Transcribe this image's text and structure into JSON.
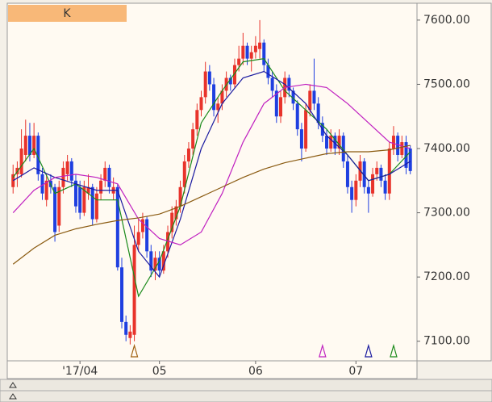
{
  "chart_data": {
    "type": "candlestick",
    "label": "K",
    "up_color": "#e8332b",
    "down_color": "#1f3fe0",
    "ylim": [
      7072,
      7625
    ],
    "yticks": [
      {
        "value": 7100,
        "label": "7100.00"
      },
      {
        "value": 7200,
        "label": "7200.00"
      },
      {
        "value": 7300,
        "label": "7300.00"
      },
      {
        "value": 7400,
        "label": "7400.00"
      },
      {
        "value": 7500,
        "label": "7500.00"
      },
      {
        "value": 7600,
        "label": "7600.00"
      }
    ],
    "xlim": [
      -1.2,
      96.6
    ],
    "xticks": [
      {
        "value": 16,
        "label": "'17/04"
      },
      {
        "value": 35,
        "label": "05"
      },
      {
        "value": 58,
        "label": "06"
      },
      {
        "value": 82,
        "label": "07"
      }
    ],
    "ohlc": [
      [
        7340,
        7375,
        7330,
        7360
      ],
      [
        7360,
        7380,
        7340,
        7370
      ],
      [
        7360,
        7430,
        7355,
        7400
      ],
      [
        7390,
        7445,
        7380,
        7420
      ],
      [
        7420,
        7440,
        7380,
        7390
      ],
      [
        7390,
        7440,
        7385,
        7420
      ],
      [
        7420,
        7425,
        7350,
        7360
      ],
      [
        7360,
        7370,
        7320,
        7330
      ],
      [
        7320,
        7360,
        7310,
        7350
      ],
      [
        7350,
        7360,
        7330,
        7340
      ],
      [
        7340,
        7345,
        7255,
        7270
      ],
      [
        7280,
        7350,
        7270,
        7340
      ],
      [
        7340,
        7380,
        7330,
        7370
      ],
      [
        7360,
        7390,
        7350,
        7380
      ],
      [
        7380,
        7385,
        7340,
        7350
      ],
      [
        7350,
        7360,
        7300,
        7310
      ],
      [
        7340,
        7350,
        7290,
        7300
      ],
      [
        7300,
        7350,
        7295,
        7340
      ],
      [
        7330,
        7360,
        7320,
        7340
      ],
      [
        7340,
        7345,
        7280,
        7290
      ],
      [
        7290,
        7340,
        7285,
        7330
      ],
      [
        7330,
        7360,
        7320,
        7350
      ],
      [
        7350,
        7380,
        7340,
        7370
      ],
      [
        7370,
        7375,
        7330,
        7340
      ],
      [
        7330,
        7355,
        7320,
        7340
      ],
      [
        7340,
        7345,
        7210,
        7215
      ],
      [
        7215,
        7230,
        7120,
        7130
      ],
      [
        7130,
        7140,
        7100,
        7110
      ],
      [
        7105,
        7125,
        7095,
        7115
      ],
      [
        7110,
        7280,
        7100,
        7250
      ],
      [
        7250,
        7290,
        7240,
        7270
      ],
      [
        7270,
        7300,
        7260,
        7290
      ],
      [
        7290,
        7295,
        7230,
        7240
      ],
      [
        7240,
        7250,
        7200,
        7210
      ],
      [
        7210,
        7240,
        7195,
        7230
      ],
      [
        7230,
        7240,
        7200,
        7210
      ],
      [
        7210,
        7250,
        7205,
        7240
      ],
      [
        7240,
        7280,
        7230,
        7270
      ],
      [
        7270,
        7310,
        7260,
        7300
      ],
      [
        7290,
        7320,
        7280,
        7310
      ],
      [
        7310,
        7350,
        7300,
        7340
      ],
      [
        7340,
        7390,
        7330,
        7380
      ],
      [
        7380,
        7410,
        7370,
        7400
      ],
      [
        7400,
        7440,
        7390,
        7430
      ],
      [
        7430,
        7470,
        7420,
        7460
      ],
      [
        7460,
        7490,
        7450,
        7480
      ],
      [
        7480,
        7535,
        7470,
        7520
      ],
      [
        7520,
        7530,
        7490,
        7500
      ],
      [
        7500,
        7510,
        7450,
        7460
      ],
      [
        7460,
        7480,
        7440,
        7470
      ],
      [
        7470,
        7500,
        7460,
        7490
      ],
      [
        7490,
        7520,
        7480,
        7510
      ],
      [
        7510,
        7515,
        7490,
        7500
      ],
      [
        7500,
        7540,
        7495,
        7530
      ],
      [
        7530,
        7560,
        7520,
        7540
      ],
      [
        7540,
        7580,
        7530,
        7560
      ],
      [
        7560,
        7565,
        7530,
        7540
      ],
      [
        7540,
        7560,
        7520,
        7550
      ],
      [
        7550,
        7575,
        7540,
        7560
      ],
      [
        7555,
        7600,
        7540,
        7565
      ],
      [
        7565,
        7570,
        7520,
        7530
      ],
      [
        7530,
        7540,
        7500,
        7510
      ],
      [
        7510,
        7520,
        7480,
        7490
      ],
      [
        7490,
        7500,
        7440,
        7450
      ],
      [
        7450,
        7490,
        7440,
        7480
      ],
      [
        7480,
        7520,
        7470,
        7510
      ],
      [
        7510,
        7515,
        7480,
        7490
      ],
      [
        7490,
        7495,
        7460,
        7470
      ],
      [
        7470,
        7475,
        7420,
        7430
      ],
      [
        7430,
        7440,
        7380,
        7400
      ],
      [
        7400,
        7470,
        7395,
        7460
      ],
      [
        7460,
        7500,
        7450,
        7490
      ],
      [
        7490,
        7540,
        7460,
        7470
      ],
      [
        7470,
        7480,
        7430,
        7440
      ],
      [
        7440,
        7450,
        7410,
        7420
      ],
      [
        7420,
        7430,
        7390,
        7400
      ],
      [
        7400,
        7430,
        7395,
        7420
      ],
      [
        7420,
        7425,
        7390,
        7400
      ],
      [
        7400,
        7430,
        7390,
        7420
      ],
      [
        7420,
        7425,
        7370,
        7380
      ],
      [
        7380,
        7390,
        7330,
        7340
      ],
      [
        7340,
        7350,
        7300,
        7320
      ],
      [
        7320,
        7360,
        7310,
        7350
      ],
      [
        7350,
        7390,
        7340,
        7380
      ],
      [
        7380,
        7385,
        7330,
        7340
      ],
      [
        7340,
        7350,
        7300,
        7330
      ],
      [
        7330,
        7370,
        7325,
        7360
      ],
      [
        7360,
        7380,
        7350,
        7370
      ],
      [
        7370,
        7375,
        7340,
        7350
      ],
      [
        7350,
        7360,
        7320,
        7330
      ],
      [
        7330,
        7410,
        7320,
        7400
      ],
      [
        7400,
        7435,
        7390,
        7420
      ],
      [
        7420,
        7425,
        7380,
        7390
      ],
      [
        7390,
        7420,
        7385,
        7410
      ],
      [
        7410,
        7420,
        7360,
        7370
      ],
      [
        7400,
        7405,
        7360,
        7365
      ]
    ],
    "x": [
      0,
      5,
      10,
      15,
      20,
      25,
      30,
      35,
      40,
      45,
      50,
      55,
      60,
      65,
      70,
      75,
      80,
      85,
      90,
      95
    ],
    "series": [
      {
        "color": "#1a8a1a",
        "values": [
          7355,
          7400,
          7330,
          7345,
          7320,
          7320,
          7170,
          7225,
          7310,
          7440,
          7490,
          7535,
          7540,
          7490,
          7460,
          7430,
          7390,
          7350,
          7360,
          7395
        ]
      },
      {
        "color": "#1a1aa0",
        "values": [
          7350,
          7370,
          7355,
          7345,
          7335,
          7335,
          7240,
          7200,
          7290,
          7400,
          7470,
          7510,
          7520,
          7500,
          7470,
          7420,
          7390,
          7350,
          7360,
          7380
        ]
      },
      {
        "color": "#c020c0",
        "values": [
          7300,
          7335,
          7355,
          7360,
          7355,
          7345,
          7290,
          7260,
          7250,
          7270,
          7330,
          7410,
          7470,
          7495,
          7500,
          7495,
          7470,
          7440,
          7410,
          7400
        ]
      },
      {
        "color": "#8a5a10",
        "values": [
          7220,
          7245,
          7265,
          7275,
          7282,
          7288,
          7292,
          7298,
          7310,
          7325,
          7340,
          7355,
          7368,
          7378,
          7385,
          7392,
          7395,
          7395,
          7398,
          7405
        ]
      }
    ],
    "signals": [
      {
        "x": 29,
        "color": "#a06010"
      },
      {
        "x": 74,
        "color": "#c020c0"
      },
      {
        "x": 85,
        "color": "#1a1aa0"
      },
      {
        "x": 91,
        "color": "#1a8a1a"
      }
    ]
  }
}
